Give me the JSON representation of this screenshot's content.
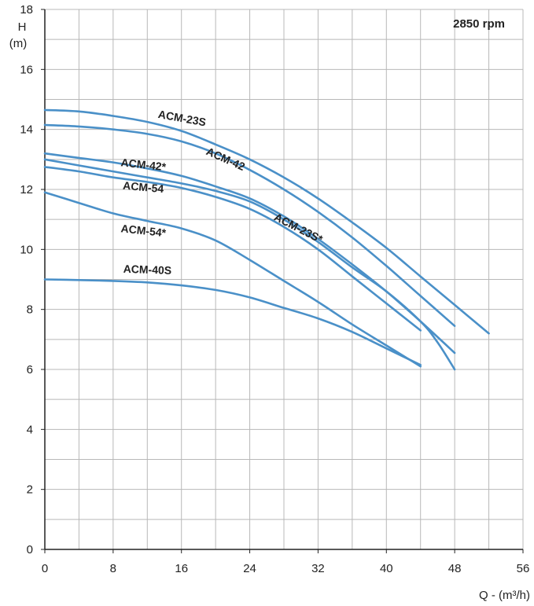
{
  "chart_data": {
    "type": "line",
    "annotation": "2850 rpm",
    "ylabel_top": "H",
    "ylabel_unit": "(m)",
    "xlabel": "Q - (m³/h)",
    "xlim": [
      0,
      56
    ],
    "ylim": [
      0,
      18
    ],
    "x_ticks": [
      0,
      8,
      16,
      24,
      32,
      40,
      48,
      56
    ],
    "y_ticks": [
      0,
      2,
      4,
      6,
      8,
      10,
      12,
      14,
      16,
      18
    ],
    "grid": true,
    "line_color": "#4a90c8",
    "series": [
      {
        "name": "ACM-23S",
        "x": [
          0,
          4,
          8,
          12,
          16,
          20,
          24,
          28,
          32,
          36,
          40,
          44,
          48,
          52
        ],
        "y": [
          14.65,
          14.6,
          14.45,
          14.25,
          13.95,
          13.5,
          13.0,
          12.4,
          11.7,
          10.9,
          10.05,
          9.1,
          8.15,
          7.2
        ]
      },
      {
        "name": "ACM-42",
        "x": [
          0,
          4,
          8,
          12,
          16,
          20,
          24,
          28,
          32,
          36,
          40,
          44,
          48
        ],
        "y": [
          14.15,
          14.1,
          14.0,
          13.85,
          13.6,
          13.2,
          12.65,
          12.0,
          11.25,
          10.4,
          9.45,
          8.45,
          7.45
        ]
      },
      {
        "name": "ACM-42*",
        "x": [
          0,
          4,
          8,
          12,
          16,
          20,
          24,
          28,
          32,
          36,
          40,
          44,
          48
        ],
        "y": [
          13.2,
          13.05,
          12.9,
          12.7,
          12.45,
          12.1,
          11.7,
          11.1,
          10.35,
          9.5,
          8.6,
          7.6,
          6.55
        ]
      },
      {
        "name": "ACM-23S*",
        "x": [
          0,
          4,
          8,
          12,
          16,
          20,
          24,
          28,
          32,
          36,
          40,
          44,
          46,
          48
        ],
        "y": [
          13.0,
          12.8,
          12.6,
          12.4,
          12.2,
          11.95,
          11.6,
          11.0,
          10.25,
          9.4,
          8.6,
          7.6,
          6.9,
          6.0
        ]
      },
      {
        "name": "ACM-54",
        "x": [
          0,
          4,
          8,
          12,
          16,
          20,
          24,
          28,
          32,
          36,
          40,
          44
        ],
        "y": [
          12.75,
          12.6,
          12.4,
          12.25,
          12.05,
          11.75,
          11.35,
          10.75,
          10.0,
          9.1,
          8.2,
          7.3
        ]
      },
      {
        "name": "ACM-54*",
        "x": [
          0,
          4,
          8,
          12,
          16,
          20,
          24,
          28,
          32,
          36,
          40,
          44
        ],
        "y": [
          11.9,
          11.55,
          11.2,
          10.95,
          10.7,
          10.3,
          9.65,
          8.95,
          8.25,
          7.5,
          6.8,
          6.1
        ]
      },
      {
        "name": "ACM-40S",
        "x": [
          0,
          4,
          8,
          12,
          16,
          20,
          24,
          28,
          32,
          36,
          40,
          44
        ],
        "y": [
          9.0,
          8.98,
          8.95,
          8.9,
          8.8,
          8.65,
          8.4,
          8.05,
          7.7,
          7.25,
          6.7,
          6.15
        ]
      }
    ],
    "series_labels": [
      {
        "text": "ACM-23S",
        "x": 16,
        "y": 14.25,
        "angle": 10
      },
      {
        "text": "ACM-42",
        "x": 21,
        "y": 12.9,
        "angle": 24
      },
      {
        "text": "ACM-42*",
        "x": 11.5,
        "y": 12.7,
        "angle": 6
      },
      {
        "text": "ACM-54",
        "x": 11.5,
        "y": 11.95,
        "angle": 5
      },
      {
        "text": "ACM-23S*",
        "x": 29.5,
        "y": 10.6,
        "angle": 27
      },
      {
        "text": "ACM-54*",
        "x": 11.5,
        "y": 10.5,
        "angle": 6
      },
      {
        "text": "ACM-40S",
        "x": 12,
        "y": 9.2,
        "angle": 2
      }
    ]
  }
}
